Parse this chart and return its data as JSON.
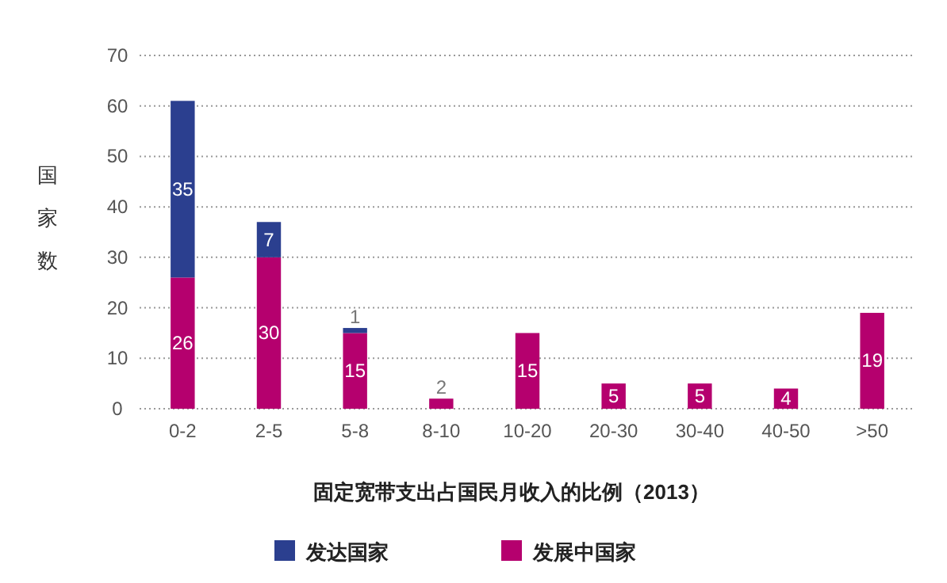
{
  "chart_data": {
    "type": "bar",
    "stacked": true,
    "xlabel": "固定宽带支出占国民月收入的比例（2013）",
    "ylabel": "国家数",
    "categories": [
      "0-2",
      "2-5",
      "5-8",
      "8-10",
      "10-20",
      "20-30",
      "30-40",
      "40-50",
      ">50"
    ],
    "series": [
      {
        "name": "发展中国家",
        "color": "#b5006e",
        "values": [
          26,
          30,
          15,
          2,
          15,
          5,
          5,
          4,
          19
        ]
      },
      {
        "name": "发达国家",
        "color": "#2b3f8f",
        "values": [
          35,
          7,
          1,
          null,
          null,
          null,
          null,
          null,
          null
        ]
      }
    ],
    "ylim": [
      0,
      70
    ],
    "yticks": [
      0,
      10,
      20,
      30,
      40,
      50,
      60,
      70
    ],
    "grid": "y",
    "data_labels": true,
    "legend": "bottom"
  }
}
